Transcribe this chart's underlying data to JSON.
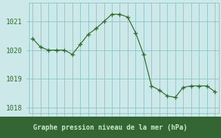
{
  "x": [
    0,
    1,
    2,
    3,
    4,
    5,
    6,
    7,
    8,
    9,
    10,
    11,
    12,
    13,
    14,
    15,
    16,
    17,
    18,
    19,
    20,
    21,
    22,
    23
  ],
  "y": [
    1020.4,
    1020.1,
    1020.0,
    1020.0,
    1020.0,
    1019.85,
    1020.2,
    1020.55,
    1020.75,
    1021.0,
    1021.25,
    1021.25,
    1021.15,
    1020.6,
    1019.85,
    1018.75,
    1018.6,
    1018.4,
    1018.35,
    1018.7,
    1018.75,
    1018.75,
    1018.75,
    1018.55
  ],
  "line_color": "#2d6a2d",
  "marker_color": "#2d6a2d",
  "bg_color": "#cce8e8",
  "grid_color": "#88c0c0",
  "text_color": "#2d6a2d",
  "xlabel": "Graphe pression niveau de la mer (hPa)",
  "xlabel_bg": "#336633",
  "xlabel_text_color": "#cce8cc",
  "ylim": [
    1017.8,
    1021.65
  ],
  "yticks": [
    1018,
    1019,
    1020,
    1021
  ],
  "tick_fontsize": 7,
  "label_fontsize": 7
}
